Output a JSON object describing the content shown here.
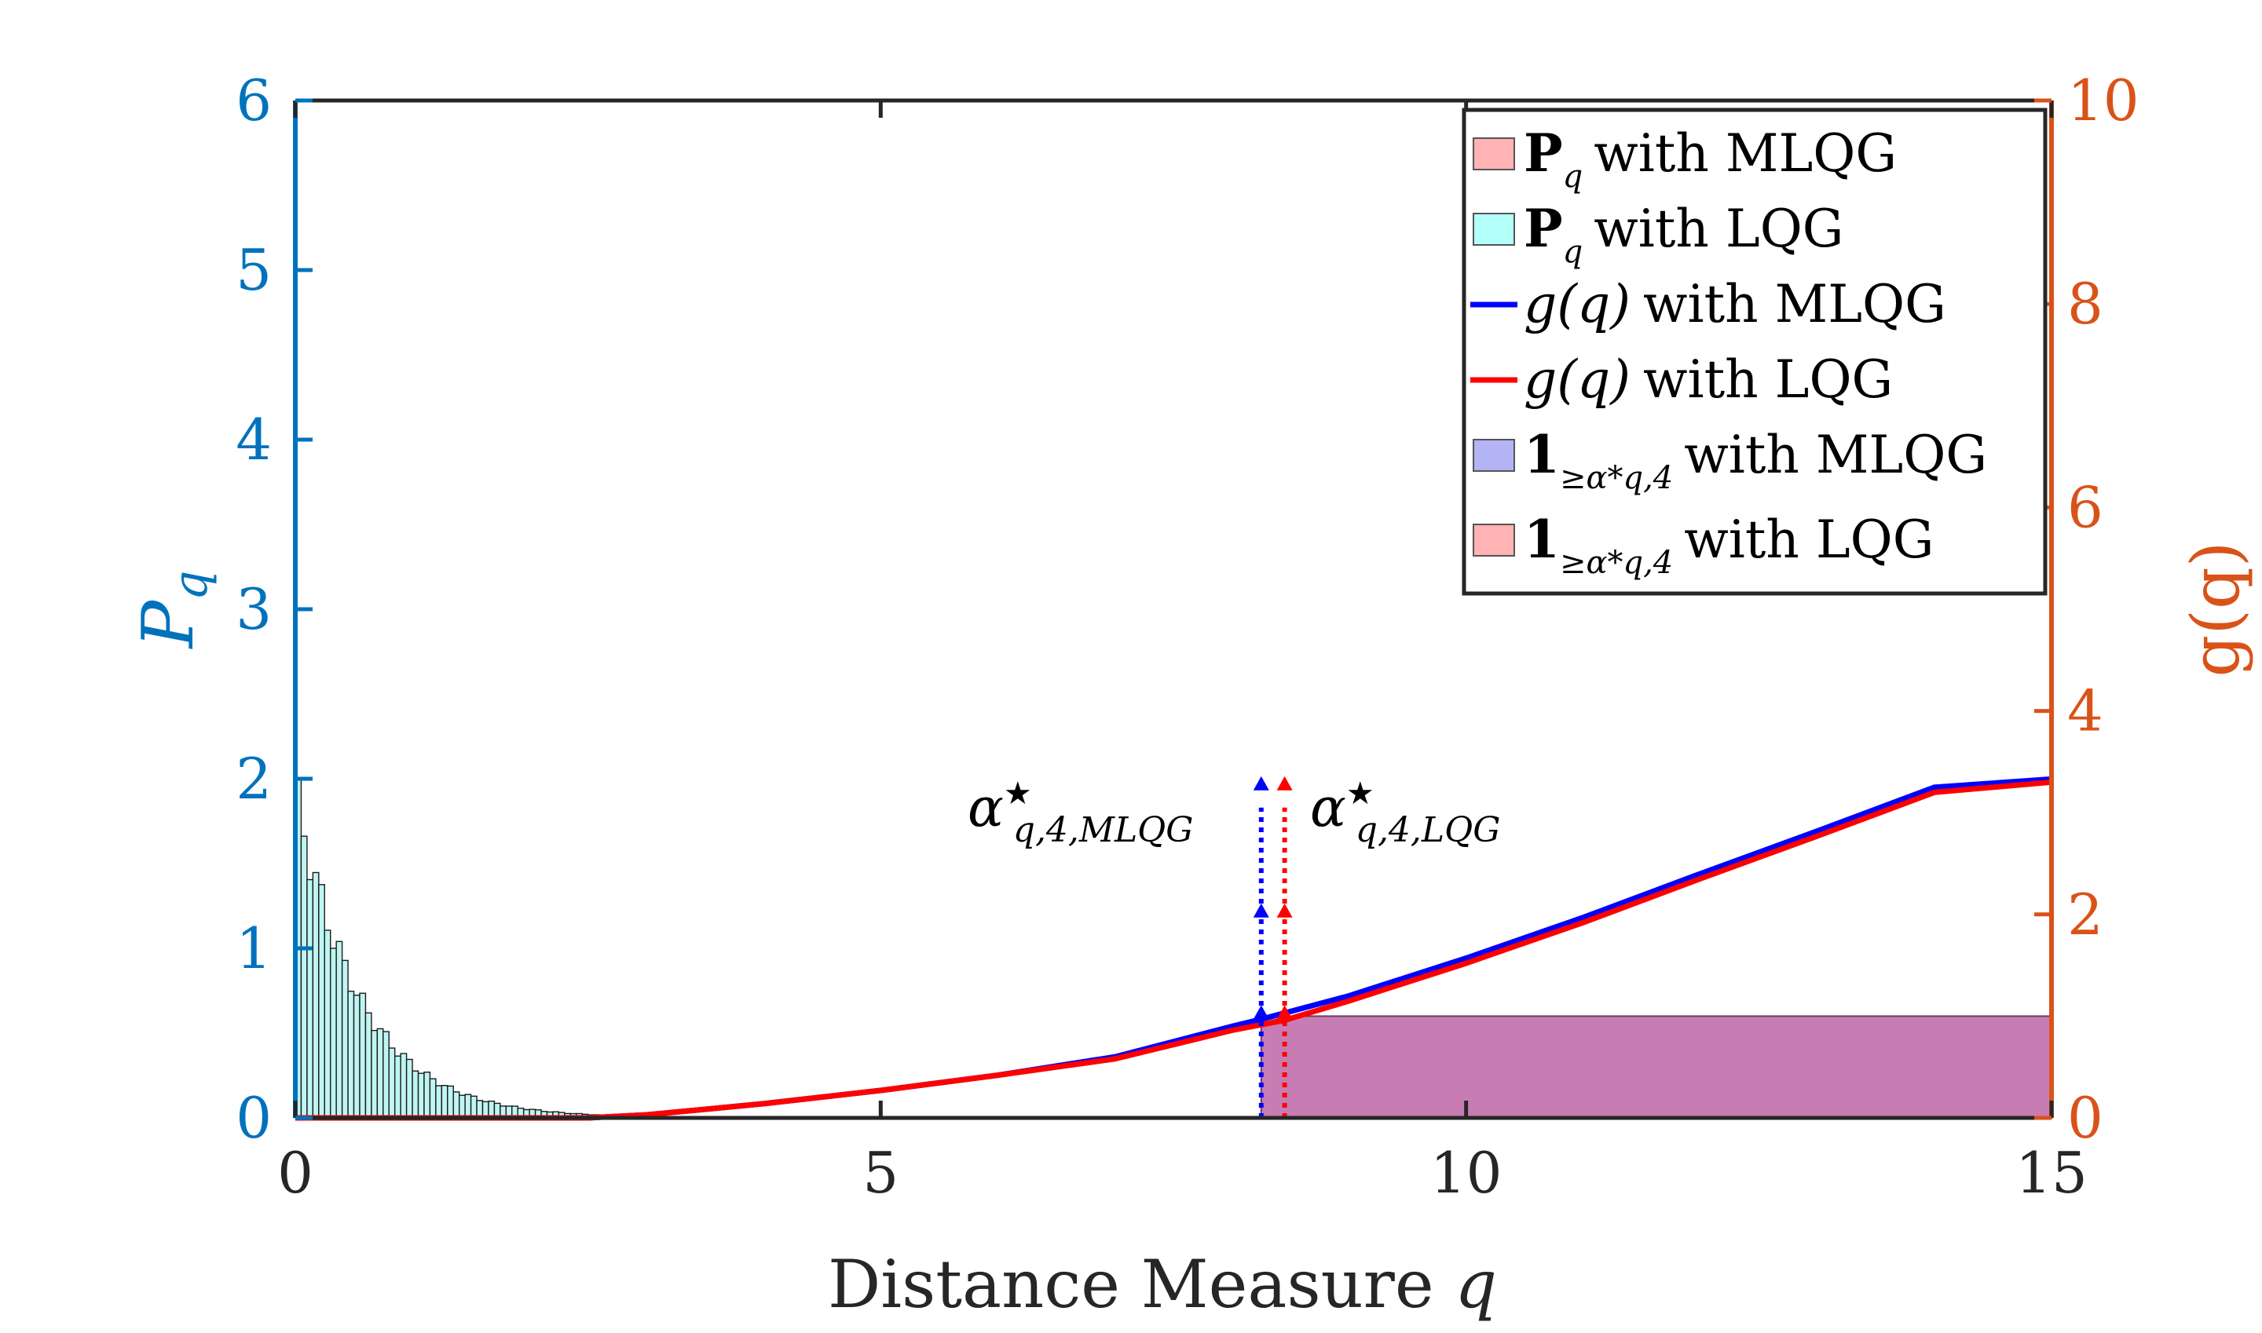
{
  "chart_data": {
    "type": "histogram+line",
    "xlabel": "Distance Measure q",
    "ylabel_left": "P_q",
    "ylabel_right": "g(q)",
    "xlim": [
      0,
      15
    ],
    "ylim_left": [
      0,
      6
    ],
    "ylim_right": [
      0,
      10
    ],
    "xticks": [
      "0",
      "5",
      "10",
      "15"
    ],
    "yticks_left": [
      "0",
      "1",
      "2",
      "3",
      "4",
      "5",
      "6"
    ],
    "yticks_right": [
      "0",
      "2",
      "4",
      "6",
      "8",
      "10"
    ],
    "colors": {
      "left_axis": "#0072BD",
      "right_axis": "#D95319",
      "mlqg_line": "#0000FF",
      "lqg_line": "#FF0000",
      "indicator_fill": "#C77DB4",
      "hist_fill": "#BFF5F2"
    },
    "histogram": {
      "name": "P_q",
      "bin_width": 0.05,
      "x_start": 0.0,
      "x_end": 4.5,
      "peak_value": 2.0,
      "decay_scale": 0.55
    },
    "series": [
      {
        "name": "g(q) with MLQG",
        "x": [
          0,
          2.5,
          3.0,
          4.0,
          5.0,
          6.0,
          7.0,
          8.0,
          8.25,
          9.0,
          10.0,
          11.0,
          12.0,
          13.0,
          14.0,
          15.0
        ],
        "y": [
          0,
          0,
          0.03,
          0.14,
          0.27,
          0.42,
          0.6,
          0.9,
          0.97,
          1.2,
          1.57,
          1.97,
          2.4,
          2.82,
          3.25,
          3.33
        ]
      },
      {
        "name": "g(q) with LQG",
        "x": [
          0,
          2.5,
          3.0,
          4.0,
          5.0,
          6.0,
          7.0,
          8.0,
          8.45,
          9.0,
          10.0,
          11.0,
          12.0,
          13.0,
          14.0,
          15.0
        ],
        "y": [
          0,
          0,
          0.03,
          0.14,
          0.27,
          0.42,
          0.58,
          0.86,
          0.96,
          1.15,
          1.52,
          1.92,
          2.35,
          2.77,
          3.2,
          3.3
        ]
      }
    ],
    "thresholds": [
      {
        "name": "alpha*_{q,4,MLQG}",
        "x": 8.25,
        "color": "#0000FF"
      },
      {
        "name": "alpha*_{q,4,LQG}",
        "x": 8.45,
        "color": "#FF0000"
      }
    ],
    "indicator": {
      "x_start": 8.25,
      "x_end": 15,
      "height_right": 1.0
    },
    "legend": {
      "position": "top-right",
      "entries": [
        {
          "symbol": "P",
          "sub": "q",
          "text": "with MLQG",
          "kind": "patch",
          "color": "#FFB3B3"
        },
        {
          "symbol": "P",
          "sub": "q",
          "text": "with LQG",
          "kind": "patch",
          "color": "#B3FFFA"
        },
        {
          "symbol": "g(q)",
          "sub": "",
          "text": "with MLQG",
          "kind": "line",
          "color": "#0000FF"
        },
        {
          "symbol": "g(q)",
          "sub": "",
          "text": "with LQG",
          "kind": "line",
          "color": "#FF0000"
        },
        {
          "symbol": "1",
          "sub": "≥α*q,4",
          "text": "with MLQG",
          "kind": "patch",
          "color": "#B3B3F5"
        },
        {
          "symbol": "1",
          "sub": "≥α*q,4",
          "text": "with LQG",
          "kind": "patch",
          "color": "#FFB3B3"
        }
      ]
    },
    "annotations": [
      {
        "text": "α*",
        "sub": "q,4,MLQG"
      },
      {
        "text": "α*",
        "sub": "q,4,LQG"
      }
    ]
  }
}
